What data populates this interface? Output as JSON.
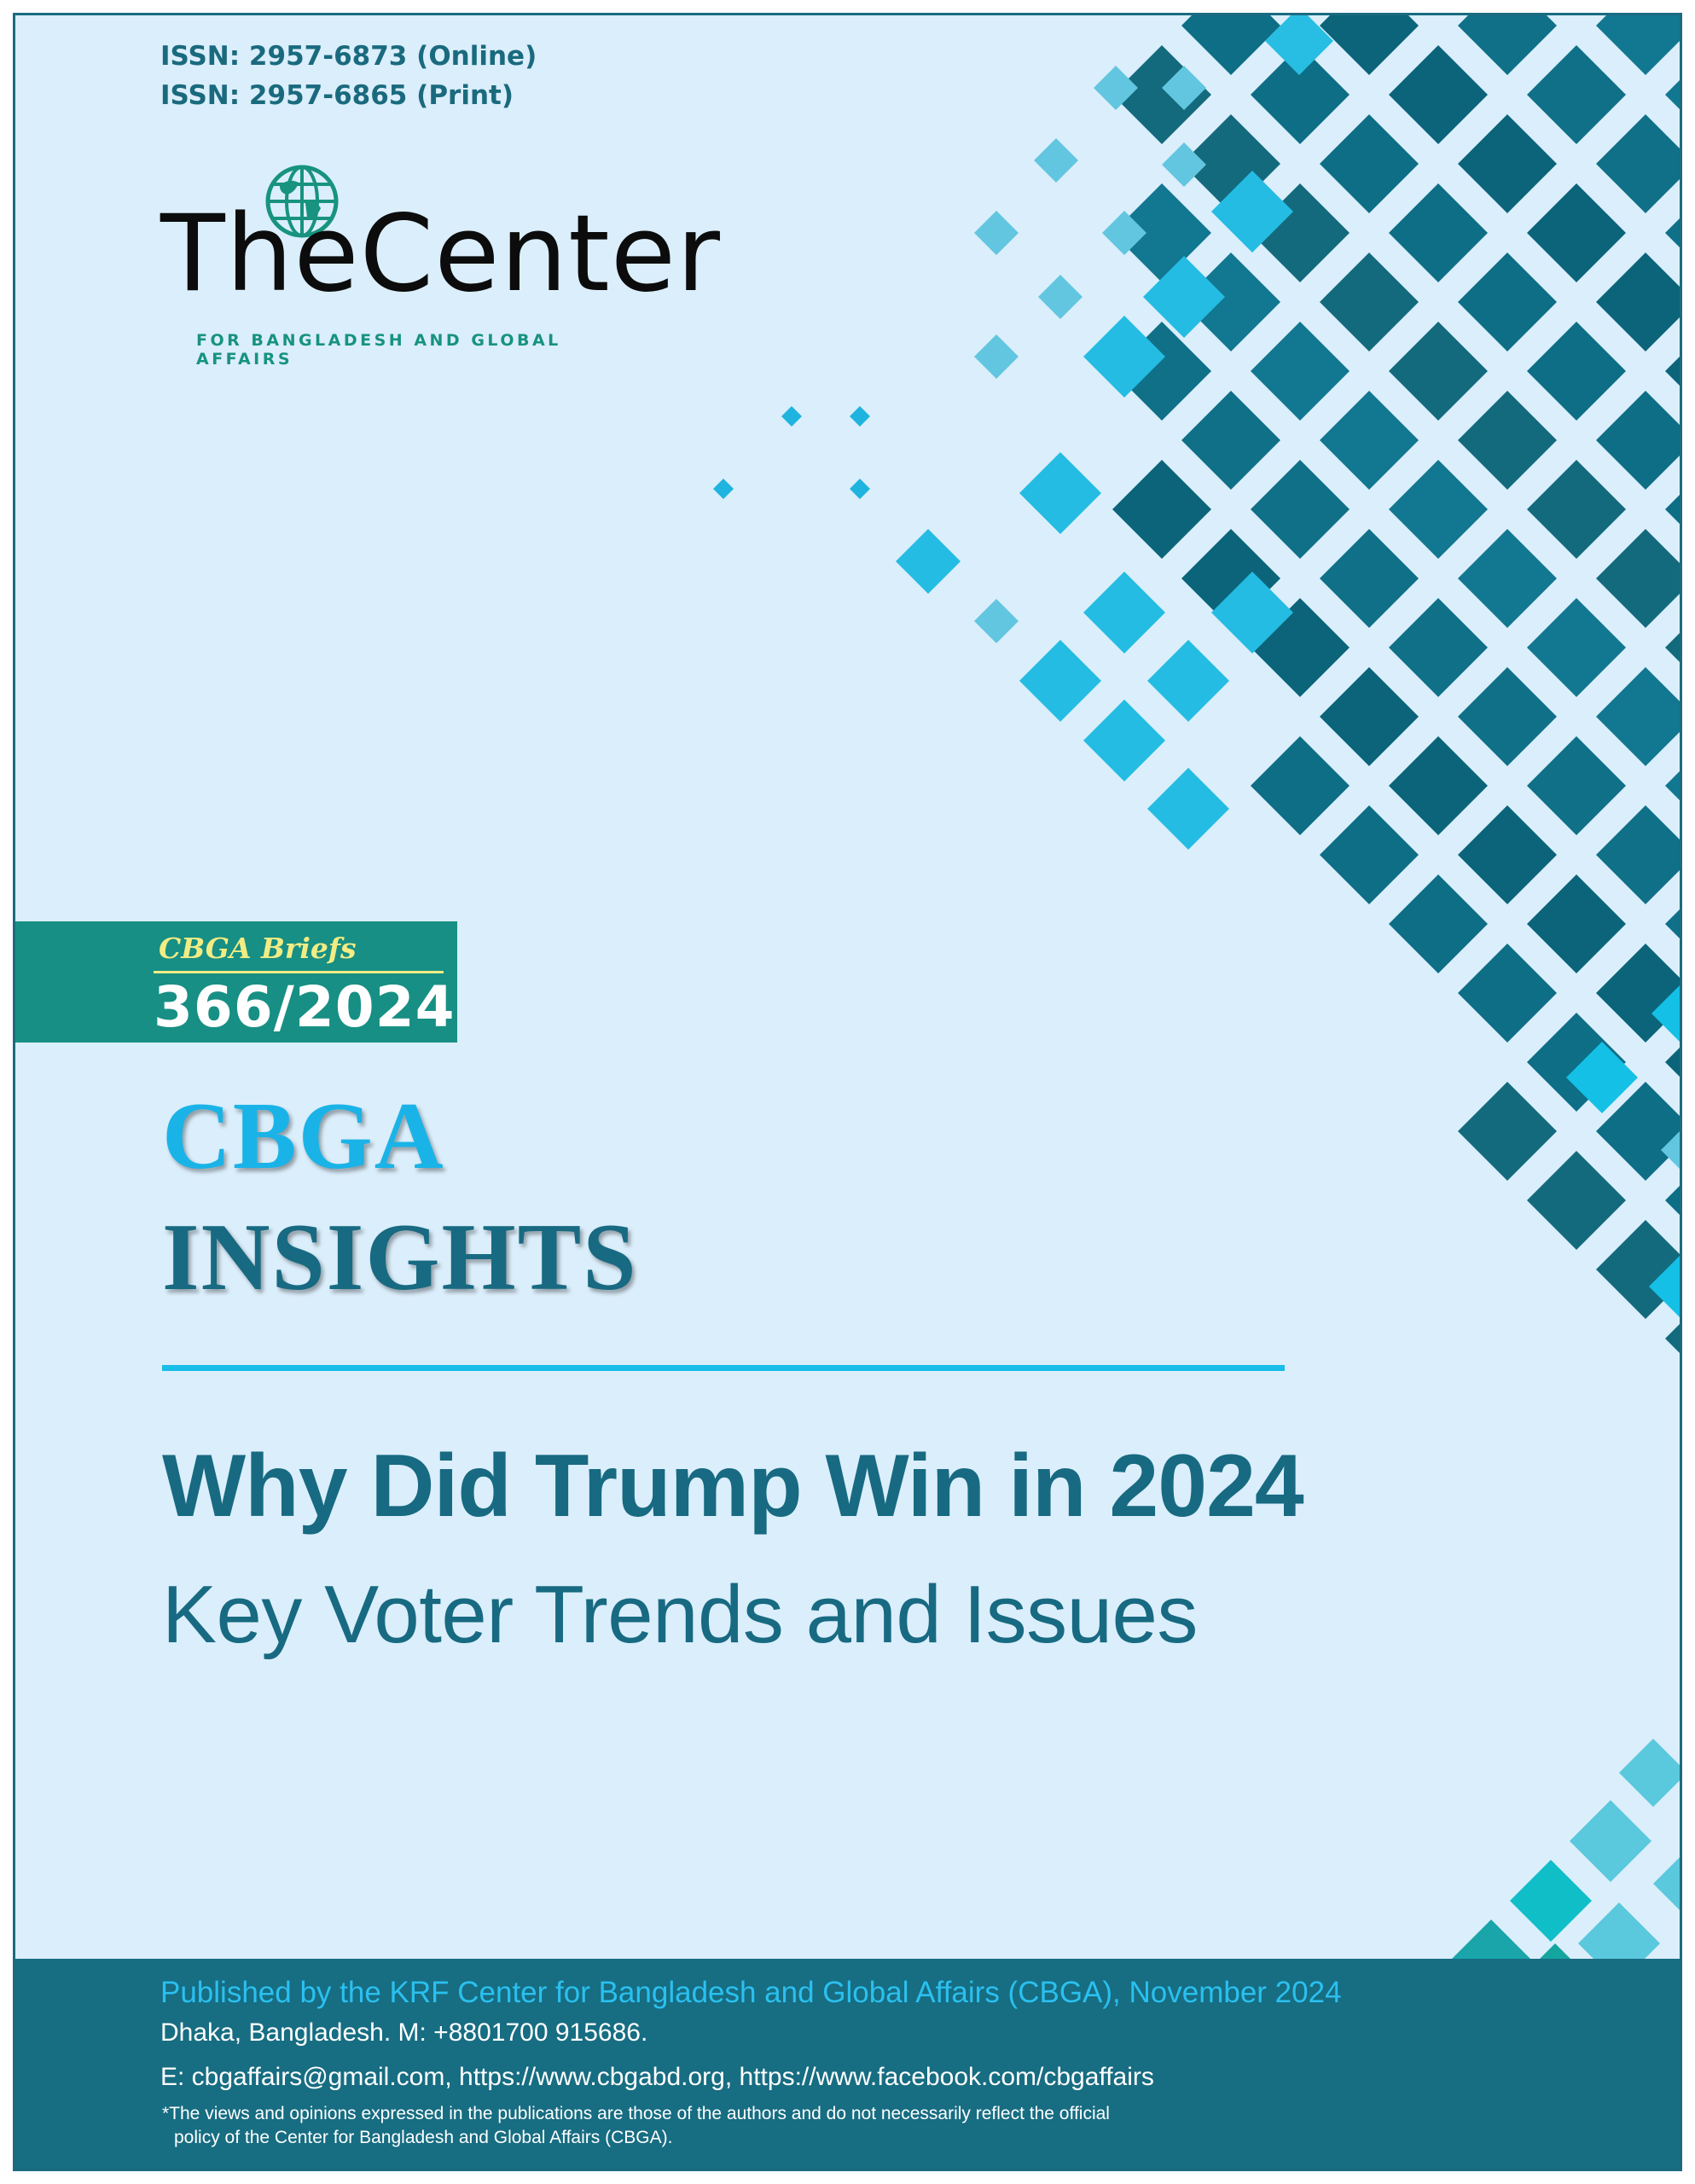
{
  "issn": {
    "online": "ISSN: 2957-6873 (Online)",
    "print": "ISSN: 2957-6865 (Print)"
  },
  "logo": {
    "wordmark": "TheCenter",
    "tagline": "FOR BANGLADESH AND GLOBAL AFFAIRS",
    "icon": "globe-icon"
  },
  "brief": {
    "label": "CBGA Briefs",
    "number": "366/2024"
  },
  "series": {
    "line1": "CBGA",
    "line2": "INSIGHTS"
  },
  "title": {
    "headline": "Why Did Trump Win in 2024",
    "subheadline": "Key Voter Trends and Issues"
  },
  "footer": {
    "publisher": "Published by the KRF Center for Bangladesh and Global Affairs (CBGA), November 2024",
    "address": "Dhaka, Bangladesh. M: +8801700 915686.",
    "contact": "E: cbgaffairs@gmail.com, https://www.cbgabd.org, https://www.facebook.com/cbgaffairs",
    "disclaimer_line1": "*The views and opinions expressed in the publications are those of the authors and do not necessarily reflect the official",
    "disclaimer_line2": "policy of the Center for Bangladesh and Global Affairs (CBGA)."
  },
  "colors": {
    "page_background": "#dbeefb",
    "dark_teal": "#176a81",
    "cyan": "#1ab3e7",
    "brief_green": "#178f84",
    "brief_yellow": "#f2ec84",
    "footer_background": "#176d82"
  }
}
